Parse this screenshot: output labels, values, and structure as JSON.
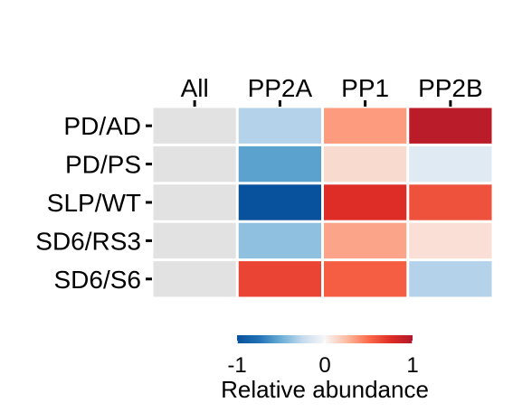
{
  "chart_data": {
    "type": "heatmap",
    "columns": [
      "All",
      "PP2A",
      "PP1",
      "PP2B"
    ],
    "rows": [
      "PD/AD",
      "PD/PS",
      "SLP/WT",
      "SD6/RS3",
      "SD6/S6"
    ],
    "values": [
      [
        null,
        -0.3,
        0.35,
        0.95
      ],
      [
        null,
        -0.55,
        0.12,
        -0.12
      ],
      [
        null,
        -1.0,
        0.75,
        0.6
      ],
      [
        null,
        -0.4,
        0.32,
        0.1
      ],
      [
        null,
        0.65,
        0.55,
        -0.3
      ]
    ],
    "missing_color": "#e2e2e2",
    "color_scale": {
      "min": -1,
      "mid": 0,
      "max": 1,
      "stops": [
        "#08519c",
        "#2171b5",
        "#6baed6",
        "#c6dbef",
        "#f7f7f7",
        "#fcbba1",
        "#fb6a4a",
        "#de2d26",
        "#b2182b"
      ]
    },
    "legend": {
      "title": "Relative abundance",
      "ticks": [
        "-1",
        "0",
        "1"
      ],
      "position": "bottom"
    }
  }
}
